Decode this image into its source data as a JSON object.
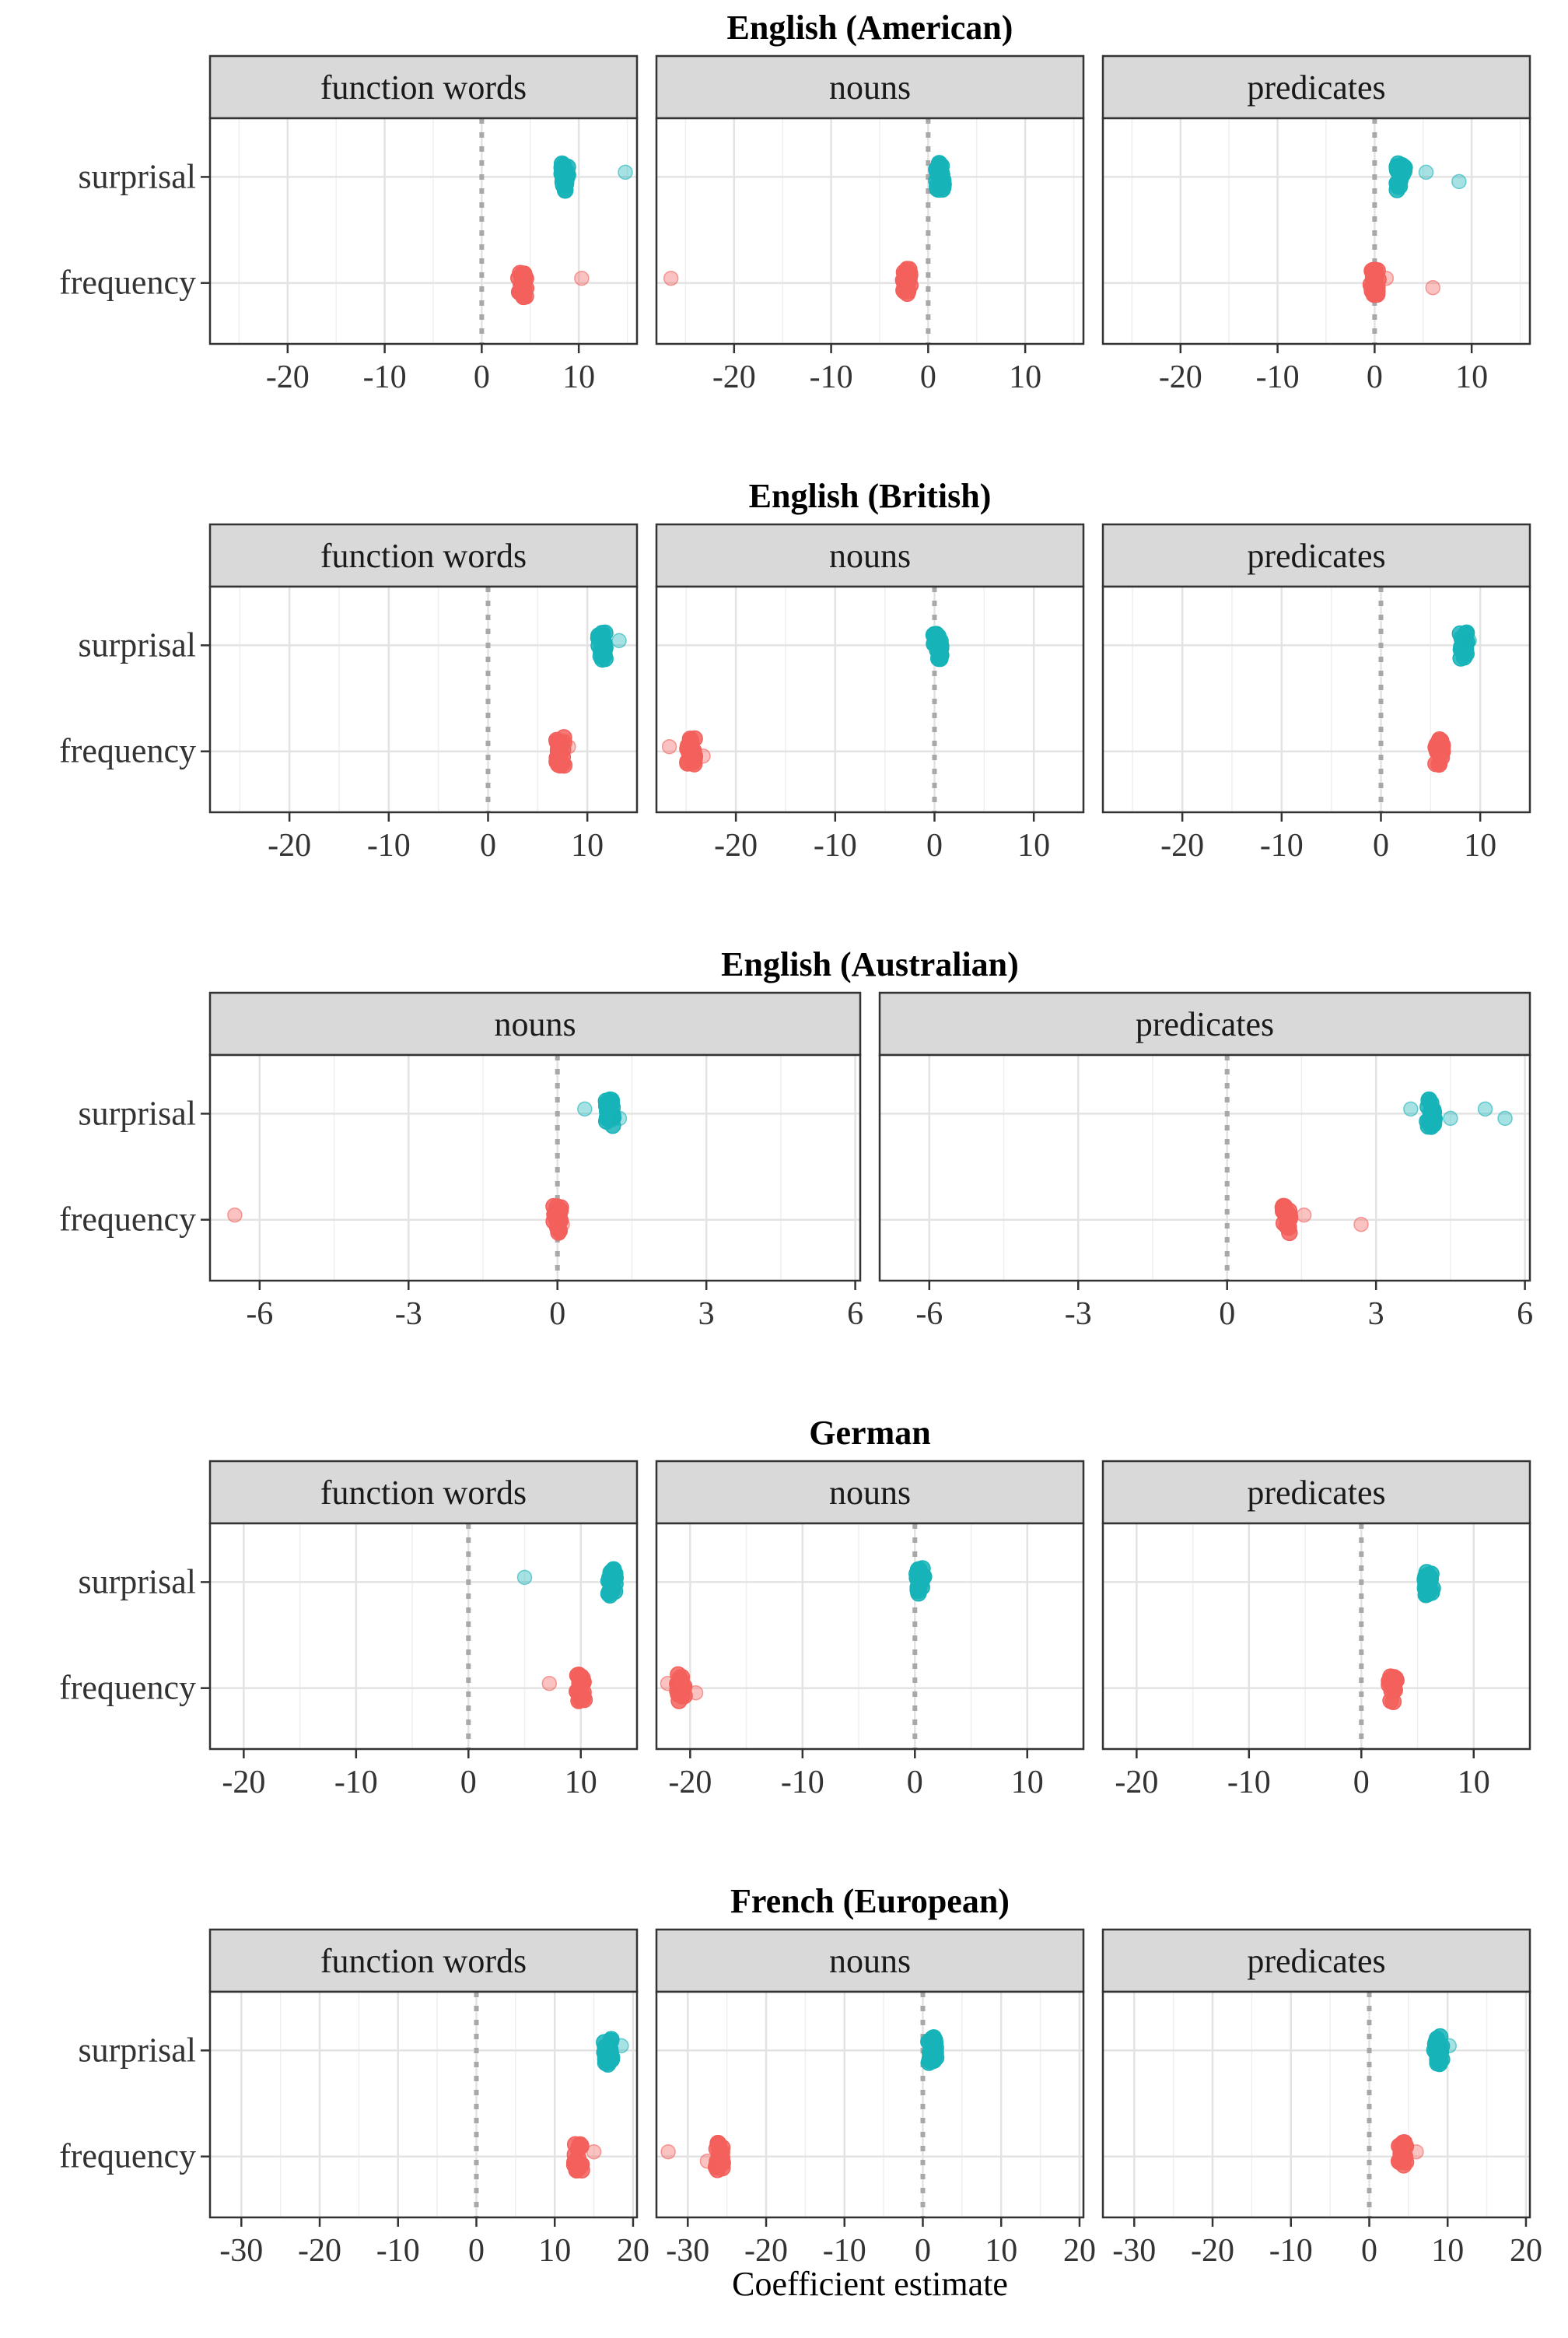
{
  "chart_data": {
    "type": "scatter",
    "xlabel": "Coefficient estimate",
    "row_labels": [
      "surprisal",
      "frequency"
    ],
    "series": [
      {
        "name": "surprisal",
        "color": "#16B3B8"
      },
      {
        "name": "frequency",
        "color": "#F3605C"
      }
    ],
    "reference_line_x": 0,
    "grid": true,
    "sections": [
      {
        "title": "English (American)",
        "xlim": [
          -28,
          16
        ],
        "xticks": [
          -20,
          -10,
          0,
          10
        ],
        "xtick_labels": [
          "-20",
          "-10",
          "0",
          "10"
        ],
        "panels": [
          {
            "label": "function words",
            "surprisal": {
              "center": 8.5,
              "outliers": [
                14.8
              ]
            },
            "frequency": {
              "center": 4.2,
              "outliers": [
                10.3
              ]
            }
          },
          {
            "label": "nouns",
            "surprisal": {
              "center": 1.2,
              "outliers": []
            },
            "frequency": {
              "center": -2.2,
              "outliers": [
                -26.5
              ]
            }
          },
          {
            "label": "predicates",
            "surprisal": {
              "center": 2.7,
              "outliers": [
                5.3,
                8.7
              ]
            },
            "frequency": {
              "center": 0.0,
              "outliers": [
                1.2,
                6.0
              ]
            }
          }
        ]
      },
      {
        "title": "English (British)",
        "xlim": [
          -28,
          15
        ],
        "xticks": [
          -20,
          -10,
          0,
          10
        ],
        "xtick_labels": [
          "-20",
          "-10",
          "0",
          "10"
        ],
        "panels": [
          {
            "label": "function words",
            "surprisal": {
              "center": 11.5,
              "outliers": [
                13.2
              ]
            },
            "frequency": {
              "center": 7.3,
              "outliers": [
                8.1
              ]
            }
          },
          {
            "label": "nouns",
            "surprisal": {
              "center": 0.3,
              "outliers": []
            },
            "frequency": {
              "center": -24.5,
              "outliers": [
                -26.7,
                -23.3
              ]
            }
          },
          {
            "label": "predicates",
            "surprisal": {
              "center": 8.3,
              "outliers": [
                8.9
              ]
            },
            "frequency": {
              "center": 5.9,
              "outliers": [
                6.3
              ]
            }
          }
        ]
      },
      {
        "title": "English (Australian)",
        "xlim": [
          -7,
          6.1
        ],
        "xticks": [
          -6,
          -3,
          0,
          3,
          6
        ],
        "xtick_labels": [
          "-6",
          "-3",
          "0",
          "3",
          "6"
        ],
        "panels": [
          {
            "label": "nouns",
            "surprisal": {
              "center": 1.05,
              "outliers": [
                0.55,
                1.25
              ]
            },
            "frequency": {
              "center": 0.0,
              "outliers": [
                -6.5,
                0.1
              ]
            }
          },
          {
            "label": "predicates",
            "surprisal": {
              "center": 4.1,
              "outliers": [
                3.7,
                4.5,
                5.2,
                5.6
              ]
            },
            "frequency": {
              "center": 1.2,
              "outliers": [
                1.55,
                2.7
              ]
            }
          }
        ]
      },
      {
        "title": "German",
        "xlim": [
          -23,
          15
        ],
        "xticks": [
          -20,
          -10,
          0,
          10
        ],
        "xtick_labels": [
          "-20",
          "-10",
          "0",
          "10"
        ],
        "panels": [
          {
            "label": "function words",
            "surprisal": {
              "center": 12.8,
              "outliers": [
                5.0
              ]
            },
            "frequency": {
              "center": 10.0,
              "outliers": [
                7.2
              ]
            }
          },
          {
            "label": "nouns",
            "surprisal": {
              "center": 0.5,
              "outliers": []
            },
            "frequency": {
              "center": -20.8,
              "outliers": [
                -22.0,
                -19.5
              ]
            }
          },
          {
            "label": "predicates",
            "surprisal": {
              "center": 6.0,
              "outliers": []
            },
            "frequency": {
              "center": 2.8,
              "outliers": []
            }
          }
        ]
      },
      {
        "title": "French (European)",
        "xlim": [
          -34,
          20.5
        ],
        "xticks": [
          -30,
          -20,
          -10,
          0,
          10,
          20
        ],
        "xtick_labels": [
          "-30",
          "-20",
          "-10",
          "0",
          "10",
          "20"
        ],
        "panels": [
          {
            "label": "function words",
            "surprisal": {
              "center": 16.8,
              "outliers": [
                18.5
              ]
            },
            "frequency": {
              "center": 13.0,
              "outliers": [
                15.0
              ]
            }
          },
          {
            "label": "nouns",
            "surprisal": {
              "center": 1.2,
              "outliers": []
            },
            "frequency": {
              "center": -26.0,
              "outliers": [
                -32.5,
                -27.5
              ]
            }
          },
          {
            "label": "predicates",
            "surprisal": {
              "center": 8.8,
              "outliers": [
                10.2
              ]
            },
            "frequency": {
              "center": 4.2,
              "outliers": [
                6.0
              ]
            }
          }
        ]
      }
    ]
  }
}
